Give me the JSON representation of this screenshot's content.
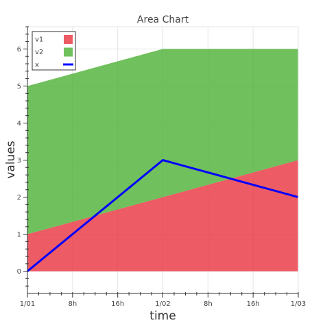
{
  "chart_data": {
    "type": "area",
    "title": "Area Chart",
    "xlabel": "time",
    "ylabel": "values",
    "x": [
      "1/01",
      "1/02",
      "1/03"
    ],
    "x_hours": [
      0,
      24,
      48
    ],
    "xlim_hours": [
      0,
      48
    ],
    "x_ticks": [
      {
        "hours": 0,
        "label": "1/01"
      },
      {
        "hours": 8,
        "label": "8h"
      },
      {
        "hours": 16,
        "label": "16h"
      },
      {
        "hours": 24,
        "label": "1/02"
      },
      {
        "hours": 32,
        "label": "8h"
      },
      {
        "hours": 40,
        "label": "16h"
      },
      {
        "hours": 48,
        "label": "1/03"
      }
    ],
    "ylim": [
      -0.6,
      6.6
    ],
    "y_ticks": [
      0,
      1,
      2,
      3,
      4,
      5,
      6
    ],
    "grid": true,
    "stacked": true,
    "legend_position": "top-left",
    "series": [
      {
        "name": "v1",
        "kind": "area",
        "values": [
          1,
          2,
          3
        ],
        "color": "#e8323e"
      },
      {
        "name": "v2",
        "kind": "area",
        "values": [
          4,
          4,
          3
        ],
        "color": "#4cb034"
      },
      {
        "name": "x",
        "kind": "line",
        "values": [
          0,
          3,
          2
        ],
        "color": "#0000ff"
      }
    ]
  }
}
